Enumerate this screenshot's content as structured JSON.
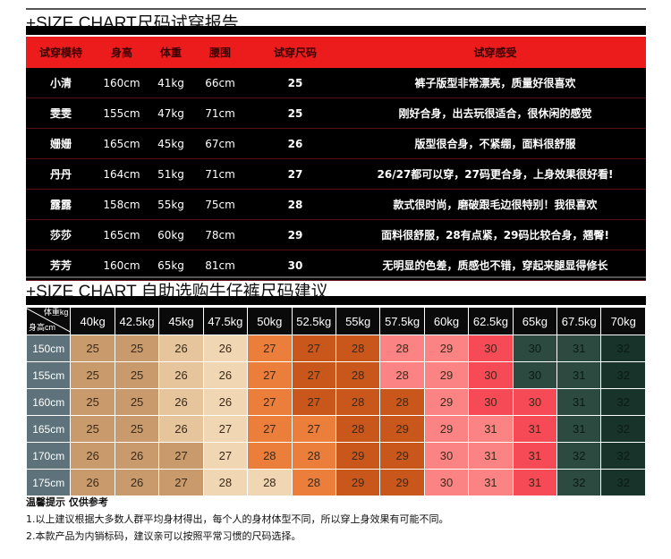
{
  "report": {
    "title": "+SIZE CHART尺码试穿报告",
    "headers": [
      "试穿模特",
      "身高",
      "体重",
      "腰围",
      "试穿尺码",
      "试穿感受"
    ],
    "rows": [
      [
        "小清",
        "160cm",
        "41kg",
        "66cm",
        "25",
        "裤子版型非常漂亮，质量好很喜欢"
      ],
      [
        "雯雯",
        "155cm",
        "47kg",
        "71cm",
        "25",
        "刚好合身，出去玩很适合，很休闲的感觉"
      ],
      [
        "姗姗",
        "165cm",
        "45kg",
        "67cm",
        "26",
        "版型很合身，不紧绷，面料很舒服"
      ],
      [
        "丹丹",
        "164cm",
        "51kg",
        "71cm",
        "27",
        "26/27都可以穿，27码更合身，上身效果很好看!"
      ],
      [
        "露露",
        "158cm",
        "55kg",
        "75cm",
        "28",
        "款式很时尚，磨破跟毛边很特别！我很喜欢"
      ],
      [
        "莎莎",
        "165cm",
        "60kg",
        "78cm",
        "29",
        "面料很舒服，28有点紧，29码比较合身，翘臀!"
      ],
      [
        "芳芳",
        "160cm",
        "65kg",
        "81cm",
        "30",
        "无明显的色差，质感也不错，穿起来腿显得修长"
      ]
    ]
  },
  "guide": {
    "title": "+SIZE CHART 自助选购牛仔裤尺码建议",
    "corner_weight": "体重kg",
    "corner_height": "身高cm",
    "weights": [
      "40kg",
      "42.5kg",
      "45kg",
      "47.5kg",
      "50kg",
      "52.5kg",
      "55kg",
      "57.5kg",
      "60kg",
      "62.5kg",
      "65kg",
      "67.5kg",
      "70kg"
    ],
    "heights": [
      "150cm",
      "155cm",
      "160cm",
      "165cm",
      "170cm",
      "175cm"
    ],
    "sizes": [
      [
        "25",
        "25",
        "26",
        "26",
        "27",
        "27",
        "28",
        "28",
        "29",
        "30",
        "30",
        "31",
        "32"
      ],
      [
        "25",
        "25",
        "26",
        "26",
        "27",
        "27",
        "28",
        "28",
        "29",
        "30",
        "30",
        "31",
        "32"
      ],
      [
        "25",
        "25",
        "26",
        "26",
        "27",
        "27",
        "28",
        "28",
        "29",
        "30",
        "30",
        "31",
        "32"
      ],
      [
        "25",
        "25",
        "26",
        "27",
        "27",
        "27",
        "28",
        "29",
        "29",
        "31",
        "31",
        "31",
        "32"
      ],
      [
        "26",
        "26",
        "27",
        "27",
        "28",
        "28",
        "29",
        "29",
        "30",
        "31",
        "31",
        "32",
        "32"
      ],
      [
        "26",
        "26",
        "27",
        "28",
        "28",
        "28",
        "29",
        "29",
        "30",
        "31",
        "31",
        "32",
        "32"
      ]
    ],
    "cell_colors": [
      [
        "tan",
        "tan",
        "light",
        "beige",
        "orange",
        "dark-orange",
        "dark-orange",
        "pink",
        "pink",
        "red",
        "green",
        "green",
        "dark-green"
      ],
      [
        "tan",
        "tan",
        "light",
        "beige",
        "orange",
        "dark-orange",
        "dark-orange",
        "pink",
        "pink",
        "red",
        "green",
        "green",
        "dark-green"
      ],
      [
        "tan",
        "tan",
        "light",
        "beige",
        "orange",
        "dark-orange",
        "dark-orange",
        "dark-orange",
        "pink",
        "red",
        "red",
        "green",
        "dark-green"
      ],
      [
        "tan",
        "tan",
        "light",
        "beige",
        "orange",
        "orange",
        "dark-orange",
        "dark-orange",
        "pink",
        "pink",
        "red",
        "green",
        "dark-green"
      ],
      [
        "tan",
        "tan",
        "tan",
        "beige",
        "orange",
        "orange",
        "dark-orange",
        "dark-orange",
        "pink",
        "pink",
        "red",
        "green",
        "dark-green"
      ],
      [
        "tan",
        "tan",
        "tan",
        "beige",
        "beige",
        "orange",
        "dark-orange",
        "dark-orange",
        "pink",
        "pink",
        "red",
        "green",
        "dark-green"
      ]
    ],
    "palette": {
      "tan": "#c99b6c",
      "light": "#e6c59c",
      "beige": "#f0d6b2",
      "orange": "#ec7e3c",
      "dark-orange": "#c9561b",
      "pink": "#fb8383",
      "red": "#f64b57",
      "green": "#2c4a40",
      "dark-green": "#17332a"
    }
  },
  "notes": {
    "heading": "温馨提示 仅供参考",
    "lines": [
      "1.以上建议根据大多数人群平均身材得出，每个人的身材体型不同，所以穿上身效果有可能不同。",
      "2.本款产品为内销标码，建议亲可以按照平常习惯的尺码选择。"
    ]
  }
}
